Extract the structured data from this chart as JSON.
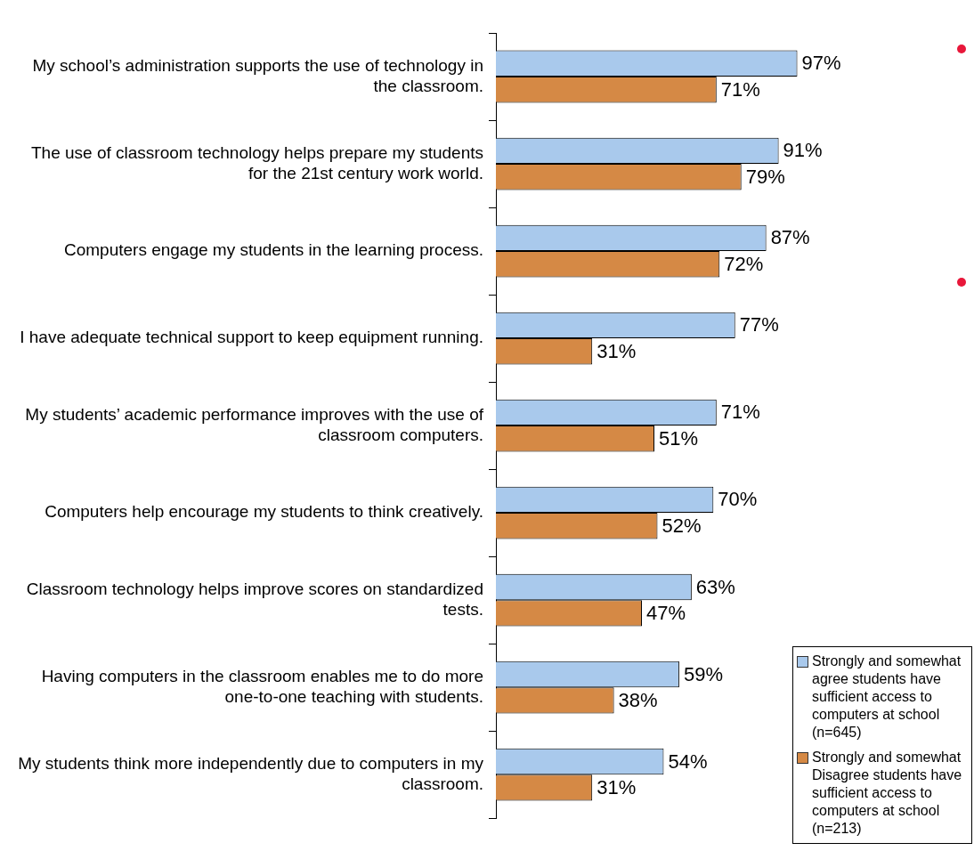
{
  "chart_data": {
    "type": "bar",
    "orientation": "horizontal",
    "relative": false,
    "legend": "bottom right",
    "data_labels": false,
    "categories": [
      "My school’s administration supports the use of technology in the classroom.",
      "The use of classroom technology helps prepare my students for the 21st century work world.",
      "Computers engage my students in the learning process.",
      "I have adequate technical support to keep equipment running.",
      "My students’ academic performance improves with the use of classroom computers.",
      "Computers help encourage my students to think creatively.",
      "Classroom technology helps improve scores on standardized tests.",
      "Having computers in the classroom enables me to do more one-to-one teaching with students.",
      "My students think more independently due to computers in my classroom."
    ],
    "series": [
      {
        "name": "Strongly and somewhat agree students have sufficient access to computers at school (n=645)",
        "color": "#a9c9ec",
        "values": [
          97,
          91,
          87,
          77,
          71,
          70,
          63,
          59,
          54
        ],
        "value_labels": [
          "97%",
          "91%",
          "87%",
          "77%",
          "71%",
          "70%",
          "63%",
          "59%",
          "54%"
        ]
      },
      {
        "name": "Strongly and somewhat Disagree students have sufficient access to computers at school (n=213)",
        "color": "#d58945",
        "values": [
          71,
          79,
          72,
          31,
          51,
          52,
          47,
          38,
          31
        ],
        "value_labels": [
          "71%",
          "79%",
          "72%",
          "31%",
          "51%",
          "52%",
          "47%",
          "38%",
          "31%"
        ]
      }
    ]
  }
}
